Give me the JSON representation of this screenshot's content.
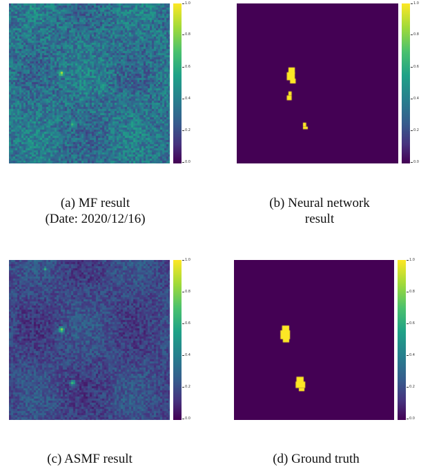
{
  "panels": [
    {
      "id": "a",
      "caption_line1": "(a) MF result",
      "caption_line2": "(Date: 2020/12/16)",
      "style": "noisy-high"
    },
    {
      "id": "b",
      "caption_line1": "(b) Neural network",
      "caption_line2": "result",
      "style": "binary"
    },
    {
      "id": "c",
      "caption_line1": "(c) ASMF result",
      "caption_line2": "",
      "style": "noisy-low"
    },
    {
      "id": "d",
      "caption_line1": "(d) Ground truth",
      "caption_line2": "",
      "style": "binary"
    }
  ],
  "colorbar": {
    "colormap": "viridis",
    "ticks": [
      "1.0",
      "0.8",
      "0.6",
      "0.4",
      "0.2",
      "0.0"
    ]
  },
  "colors": {
    "low": "#440154",
    "mid": "#277f8e",
    "high": "#fde725"
  }
}
